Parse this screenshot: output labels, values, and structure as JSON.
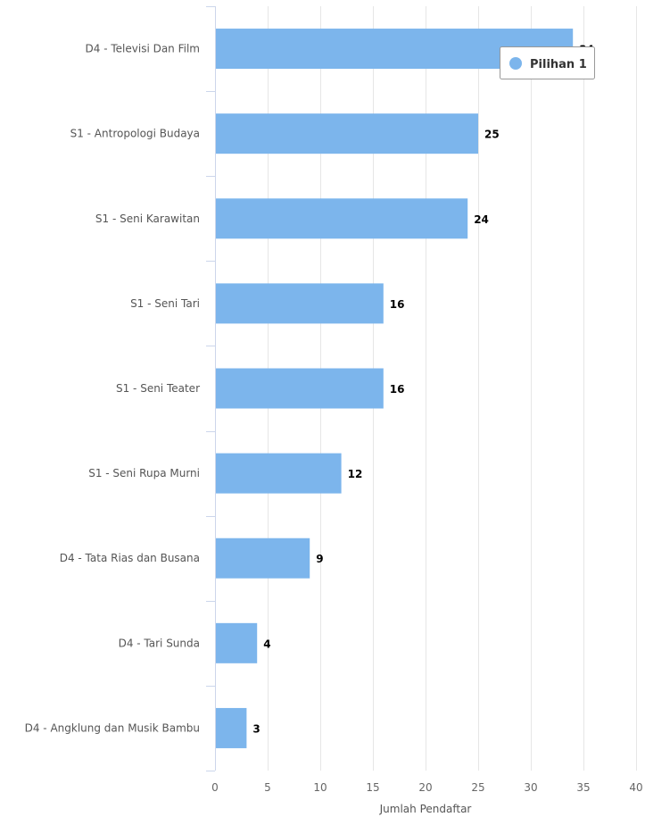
{
  "chart_data": {
    "type": "bar",
    "orientation": "horizontal",
    "categories": [
      "D4 - Televisi Dan Film",
      "S1 - Antropologi Budaya",
      "S1 - Seni Karawitan",
      "S1 - Seni Tari",
      "S1 - Seni Teater",
      "S1 - Seni Rupa Murni",
      "D4 - Tata Rias dan Busana",
      "D4 - Tari Sunda",
      "D4 - Angklung dan Musik Bambu"
    ],
    "series": [
      {
        "name": "Pilihan 1",
        "color": "#7cb5ec",
        "values": [
          34,
          25,
          24,
          16,
          16,
          12,
          9,
          4,
          3
        ],
        "labels": [
          "34",
          "25",
          "24",
          "16",
          "16",
          "12",
          "9",
          "4",
          "3"
        ]
      }
    ],
    "title": "",
    "xlabel": "Jumlah Pendaftar",
    "ylabel": "",
    "xlim": [
      0,
      40
    ],
    "xticks": [
      0,
      5,
      10,
      15,
      20,
      25,
      30,
      35,
      40
    ],
    "xtick_labels": [
      "0",
      "5",
      "10",
      "15",
      "20",
      "25",
      "30",
      "35",
      "40"
    ],
    "grid": true,
    "legend_position": "top-right",
    "grid_color": "#e6e6e6",
    "axis_color": "#ccd6eb"
  }
}
